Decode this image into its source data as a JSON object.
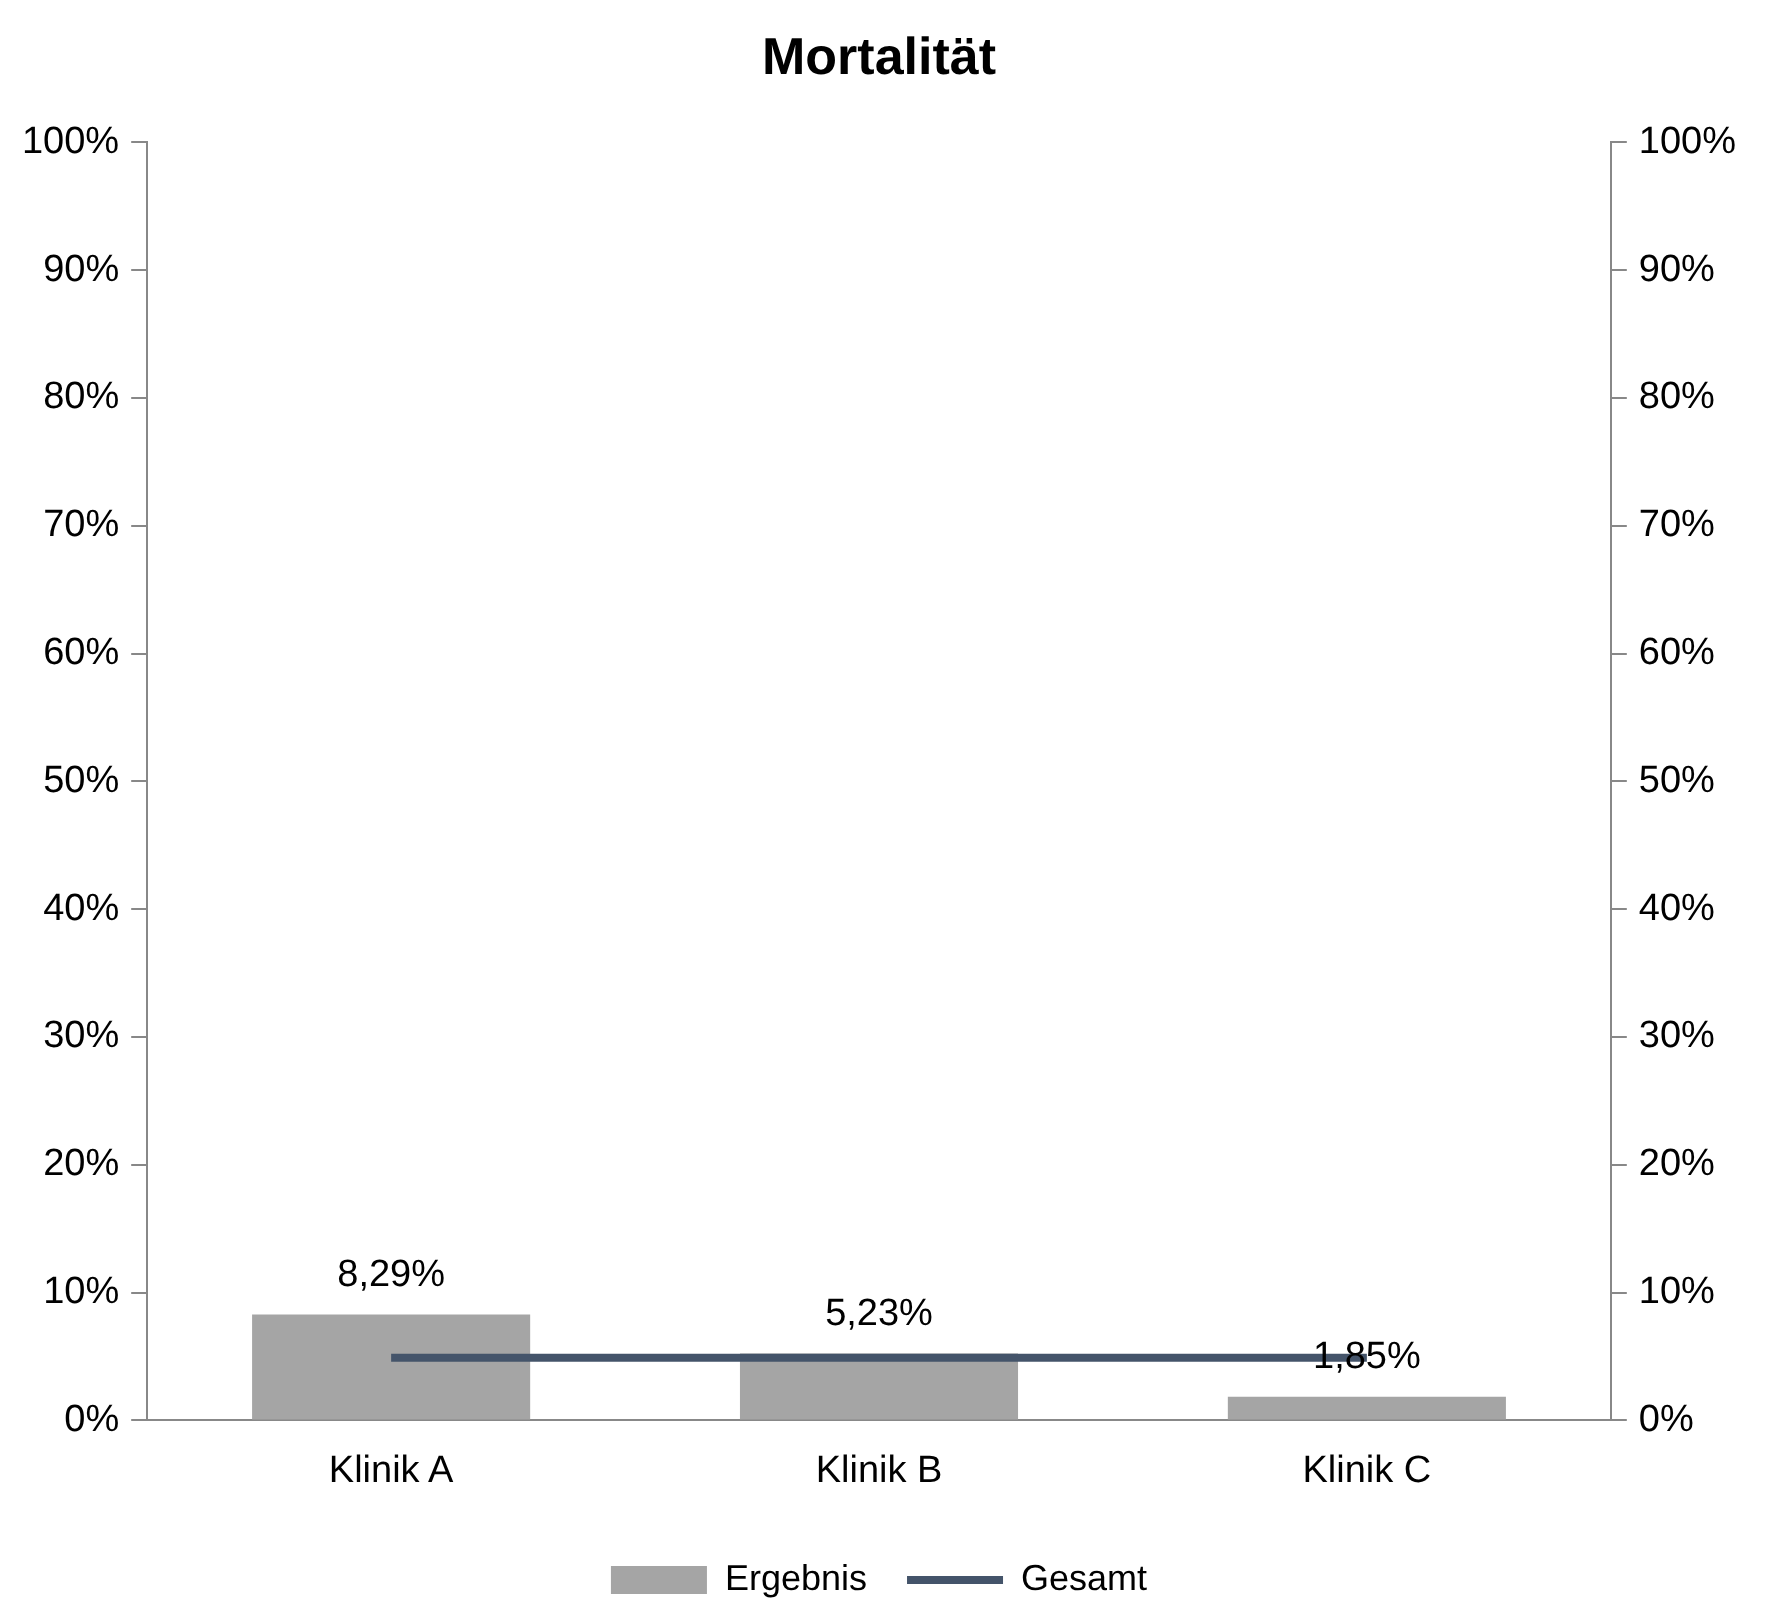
{
  "chart_data": {
    "type": "bar",
    "title": "Mortalität",
    "categories": [
      "Klinik A",
      "Klinik B",
      "Klinik C"
    ],
    "series": [
      {
        "name": "Ergebnis",
        "color": "#a5a5a5",
        "values": [
          8.29,
          5.23,
          1.85
        ],
        "value_labels": [
          "8,29%",
          "5,23%",
          "1,85%"
        ]
      },
      {
        "name": "Gesamt",
        "type": "line",
        "color": "#44546a",
        "values": [
          4.9,
          4.9,
          4.9
        ],
        "axis": "y2",
        "marker": "none"
      }
    ],
    "ylim": [
      0,
      100
    ],
    "yticks": [
      {
        "value": 0,
        "label": "0%"
      },
      {
        "value": 10,
        "label": "10%"
      },
      {
        "value": 20,
        "label": "20%"
      },
      {
        "value": 30,
        "label": "30%"
      },
      {
        "value": 40,
        "label": "40%"
      },
      {
        "value": 50,
        "label": "50%"
      },
      {
        "value": 60,
        "label": "60%"
      },
      {
        "value": 70,
        "label": "70%"
      },
      {
        "value": 80,
        "label": "80%"
      },
      {
        "value": 90,
        "label": "90%"
      },
      {
        "value": 100,
        "label": "100%"
      }
    ],
    "y2lim": [
      0,
      100
    ],
    "y2ticks": [
      {
        "value": 0,
        "label": "0%"
      },
      {
        "value": 10,
        "label": "10%"
      },
      {
        "value": 20,
        "label": "20%"
      },
      {
        "value": 30,
        "label": "30%"
      },
      {
        "value": 40,
        "label": "40%"
      },
      {
        "value": 50,
        "label": "50%"
      },
      {
        "value": 60,
        "label": "60%"
      },
      {
        "value": 70,
        "label": "70%"
      },
      {
        "value": 80,
        "label": "80%"
      },
      {
        "value": 90,
        "label": "90%"
      },
      {
        "value": 100,
        "label": "100%"
      }
    ],
    "grid": false,
    "legend": "bottom"
  }
}
